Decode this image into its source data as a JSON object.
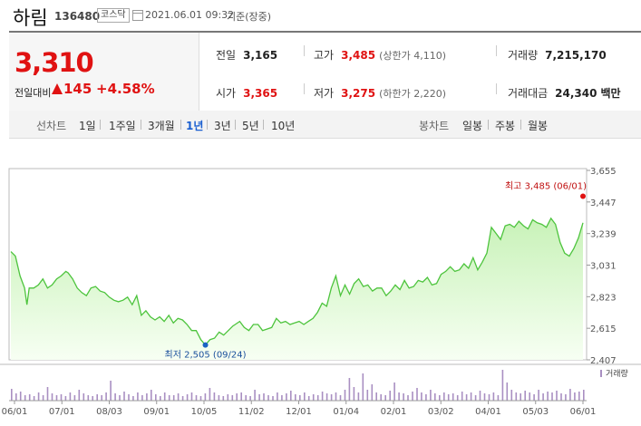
{
  "header": {
    "name": "하림",
    "code": "136480",
    "market": "코스닥",
    "date": "2021.06.01 09:32",
    "basis": "기준(장중)"
  },
  "quote": {
    "price": "3,310",
    "change_label": "전일대비",
    "change": "145",
    "change_pct": "+4.58%",
    "prev_close_label": "전일",
    "prev_close": "3,165",
    "high_label": "고가",
    "high": "3,485",
    "upper_limit": "(상한가 4,110)",
    "volume_label": "거래량",
    "volume": "7,215,170",
    "open_label": "시가",
    "open": "3,365",
    "low_label": "저가",
    "low": "3,275",
    "lower_limit": "(하한가 2,220)",
    "amount_label": "거래대금",
    "amount": "24,340",
    "amount_unit": "백만"
  },
  "tabs": {
    "line_label": "선차트",
    "periods": [
      "1일",
      "1주일",
      "3개월",
      "1년",
      "3년",
      "5년",
      "10년"
    ],
    "active_period": "1년",
    "candle_label": "봉차트",
    "candles": [
      "일봉",
      "주봉",
      "월봉"
    ]
  },
  "colors": {
    "up": "#e01212",
    "line": "#4dc43d",
    "fill_top": "#c8f2b8",
    "high_marker": "#e01212",
    "low_marker": "#1a63c4",
    "volume": "#a98fc2"
  },
  "chart_data": {
    "type": "area",
    "ylim": [
      2407,
      3655
    ],
    "y_ticks": [
      "3,655",
      "3,447",
      "3,239",
      "3,031",
      "2,823",
      "2,615",
      "2,407"
    ],
    "x_ticks": [
      "06/01",
      "07/01",
      "08/03",
      "09/01",
      "10/05",
      "11/02",
      "12/01",
      "01/04",
      "02/01",
      "03/02",
      "04/01",
      "05/03",
      "06/01"
    ],
    "high_annotation": "최고 3,485 (06/01)",
    "low_annotation": "최저 2,505 (09/24)",
    "volume_label": "거래량",
    "x": [
      0,
      2,
      4,
      6,
      7,
      8,
      10,
      12,
      14,
      16,
      18,
      20,
      22,
      24,
      25,
      27,
      29,
      31,
      33,
      35,
      37,
      39,
      41,
      43,
      45,
      47,
      49,
      51,
      53,
      55,
      57,
      59,
      61,
      63,
      65,
      67,
      69,
      71,
      73,
      75,
      77,
      79,
      81,
      83,
      85,
      87,
      89,
      91,
      93,
      95,
      97,
      98,
      100,
      102,
      104,
      106,
      108,
      110,
      112,
      114,
      116,
      118,
      120,
      122,
      124,
      126,
      128,
      130,
      132,
      134,
      136,
      138,
      140,
      142,
      144,
      146,
      148,
      150,
      152,
      154,
      156,
      158,
      160,
      162,
      164,
      166,
      168,
      170,
      172,
      174,
      176,
      178,
      180,
      182,
      184,
      186,
      188,
      190,
      192,
      194,
      196,
      198,
      200,
      202,
      204,
      206,
      208,
      210,
      212,
      214,
      216,
      218,
      220,
      222,
      224,
      226,
      228,
      230,
      232,
      234,
      236,
      238,
      240,
      242,
      244,
      246,
      248,
      250
    ],
    "values": [
      3120,
      3090,
      2960,
      2880,
      2770,
      2880,
      2880,
      2900,
      2940,
      2880,
      2900,
      2940,
      2960,
      2990,
      2980,
      2940,
      2880,
      2850,
      2830,
      2880,
      2890,
      2860,
      2850,
      2820,
      2800,
      2790,
      2800,
      2820,
      2770,
      2830,
      2700,
      2730,
      2690,
      2670,
      2690,
      2660,
      2700,
      2650,
      2680,
      2670,
      2640,
      2600,
      2600,
      2540,
      2505,
      2540,
      2550,
      2590,
      2570,
      2600,
      2630,
      2640,
      2660,
      2620,
      2600,
      2640,
      2640,
      2600,
      2610,
      2620,
      2680,
      2650,
      2660,
      2640,
      2650,
      2660,
      2640,
      2660,
      2680,
      2720,
      2780,
      2760,
      2880,
      2960,
      2830,
      2900,
      2840,
      2910,
      2940,
      2890,
      2900,
      2860,
      2880,
      2880,
      2830,
      2860,
      2900,
      2870,
      2930,
      2880,
      2890,
      2930,
      2920,
      2950,
      2900,
      2910,
      2970,
      2990,
      3020,
      2990,
      3000,
      3040,
      3010,
      3080,
      3000,
      3050,
      3110,
      3280,
      3240,
      3200,
      3290,
      3300,
      3280,
      3320,
      3290,
      3270,
      3330,
      3310,
      3300,
      3280,
      3340,
      3300,
      3180,
      3110,
      3090,
      3140,
      3210,
      3310
    ],
    "volume": [
      13,
      8,
      10,
      6,
      7,
      5,
      9,
      6,
      15,
      8,
      6,
      7,
      5,
      9,
      6,
      12,
      8,
      6,
      5,
      7,
      6,
      9,
      22,
      8,
      6,
      10,
      7,
      5,
      9,
      6,
      8,
      12,
      7,
      5,
      9,
      6,
      6,
      8,
      5,
      7,
      9,
      6,
      5,
      8,
      14,
      9,
      6,
      5,
      7,
      6,
      8,
      9,
      6,
      5,
      12,
      7,
      8,
      6,
      5,
      9,
      6,
      8,
      11,
      7,
      6,
      9,
      5,
      7,
      6,
      10,
      8,
      7,
      9,
      6,
      12,
      25,
      15,
      9,
      30,
      12,
      18,
      9,
      7,
      6,
      11,
      20,
      9,
      8,
      6,
      10,
      14,
      9,
      7,
      12,
      8,
      6,
      9,
      7,
      8,
      6,
      10,
      7,
      9,
      6,
      11,
      8,
      7,
      9,
      6,
      34,
      20,
      12,
      9,
      8,
      11,
      9,
      7,
      12,
      8,
      10,
      9,
      11,
      8,
      7,
      13,
      9,
      10,
      12
    ]
  }
}
